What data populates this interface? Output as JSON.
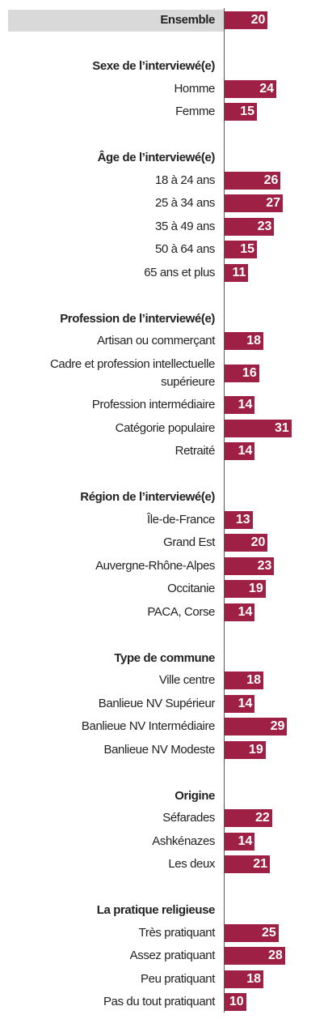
{
  "chart_data": {
    "type": "bar",
    "orientation": "horizontal",
    "color": "#9e2145",
    "overall": {
      "label": "Ensemble",
      "value": 20
    },
    "groups": [
      {
        "title": "Sexe de l’interviewé(e)",
        "categories": [
          "Homme",
          "Femme"
        ],
        "values": [
          24,
          15
        ]
      },
      {
        "title": "Âge de l’interviewé(e)",
        "categories": [
          "18 à 24 ans",
          "25 à 34 ans",
          "35 à 49 ans",
          "50 à 64 ans",
          "65 ans et plus"
        ],
        "values": [
          26,
          27,
          23,
          15,
          11
        ]
      },
      {
        "title": "Profession de l’interviewé(e)",
        "categories": [
          "Artisan ou commerçant",
          "Cadre et profession intellectuelle supérieure",
          "Profession intermédiaire",
          "Catégorie populaire",
          "Retraité"
        ],
        "values": [
          18,
          16,
          14,
          31,
          14
        ]
      },
      {
        "title": "Région de l’interviewé(e)",
        "categories": [
          "Île-de-France",
          "Grand Est",
          "Auvergne-Rhône-Alpes",
          "Occitanie",
          "PACA, Corse"
        ],
        "values": [
          13,
          20,
          23,
          19,
          14
        ]
      },
      {
        "title": "Type de commune",
        "categories": [
          "Ville centre",
          "Banlieue NV Supérieur",
          "Banlieue NV Intermédiaire",
          "Banlieue NV Modeste"
        ],
        "values": [
          18,
          14,
          29,
          19
        ]
      },
      {
        "title": "Origine",
        "categories": [
          "Séfarades",
          "Ashkénazes",
          "Les deux"
        ],
        "values": [
          22,
          14,
          21
        ]
      },
      {
        "title": "La pratique religieuse",
        "categories": [
          "Très pratiquant",
          "Assez pratiquant",
          "Peu pratiquant",
          "Pas du tout pratiquant"
        ],
        "values": [
          25,
          28,
          18,
          10
        ]
      }
    ]
  }
}
